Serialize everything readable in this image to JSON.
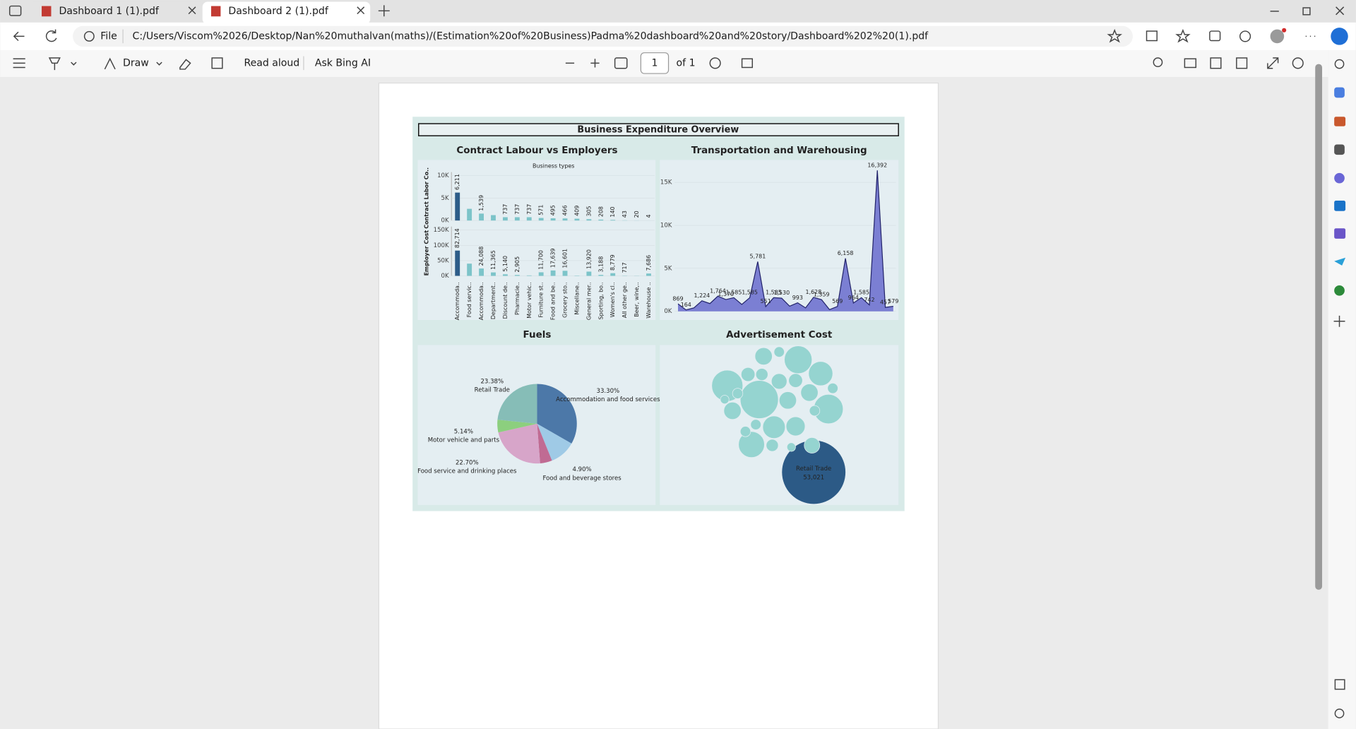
{
  "browser": {
    "tabs": [
      "Dashboard 1 (1).pdf",
      "Dashboard 2 (1).pdf"
    ],
    "address_scheme": "File",
    "url": "C:/Users/Viscom%2026/Desktop/Nan%20muthalvan(maths)/(Estimation%20of%20Business)Padma%20dashboard%20and%20story/Dashboard%202%20(1).pdf"
  },
  "pdf_toolbar": {
    "draw": "Draw",
    "read_aloud": "Read aloud",
    "ask": "Ask Bing AI",
    "page": "1",
    "page_count": "of 1"
  },
  "dashboard": {
    "title": "Business Expenditure Overview",
    "charts": [
      {
        "type": "bar",
        "title": "Contract Labour vs Employers",
        "subtitle": "Business types",
        "categories": [
          "Accommoda..",
          "Food servic..",
          "Accommoda..",
          "Department..",
          "Discount de..",
          "Pharmacie..",
          "Motor vehic..",
          "Furniture st..",
          "Food and be..",
          "Grocery sto..",
          "Miscellane..",
          "General mer..",
          "Sporting, bo..",
          "Women's cl..",
          "All other ge..",
          "Beer, wine,..",
          "Warehouse .."
        ],
        "color": "#7cc4c9",
        "highlight_color": "#2d5c88",
        "panels": [
          {
            "ylabel": "Contract Labor Co..",
            "ylim": [
              0,
              10000
            ],
            "yticks": [
              {
                "value": 0,
                "label": "0K"
              },
              {
                "value": 5000,
                "label": "5K"
              },
              {
                "value": 10000,
                "label": "10K"
              }
            ],
            "values": [
              6211,
              2600,
              1539,
              1200,
              737,
              737,
              737,
              571,
              495,
              466,
              409,
              305,
              208,
              140,
              43,
              20,
              4
            ],
            "value_labels": [
              "6,211",
              null,
              "1,539",
              null,
              "737",
              "737",
              "737",
              "571",
              "495",
              "466",
              "409",
              "305",
              "208",
              "140",
              "43",
              "20",
              "4"
            ]
          },
          {
            "ylabel": "Employer Cost",
            "ylim": [
              0,
              150000
            ],
            "yticks": [
              {
                "value": 0,
                "label": "0K"
              },
              {
                "value": 50000,
                "label": "50K"
              },
              {
                "value": 100000,
                "label": "100K"
              },
              {
                "value": 150000,
                "label": "150K"
              }
            ],
            "values": [
              82714,
              40000,
              24088,
              11365,
              5140,
              2905,
              1500,
              11700,
              17639,
              16601,
              1000,
              13920,
              3188,
              8779,
              717,
              500,
              7686
            ],
            "value_labels": [
              "82,714",
              null,
              "24,088",
              "11,365",
              "5,140",
              "2,905",
              null,
              "11,700",
              "17,639",
              "16,601",
              null,
              "13,920",
              "3,188",
              "8,779",
              "717",
              null,
              "7,686"
            ]
          }
        ]
      },
      {
        "type": "area",
        "title": "Transportation and Warehousing",
        "color": "#7b7fd3",
        "line_color": "#23246b",
        "ylim": [
          0,
          17000
        ],
        "yticks": [
          {
            "value": 0,
            "label": "0K"
          },
          {
            "value": 5000,
            "label": "5K"
          },
          {
            "value": 10000,
            "label": "10K"
          },
          {
            "value": 15000,
            "label": "15K"
          }
        ],
        "values": [
          869,
          164,
          400,
          1224,
          900,
          1764,
          1370,
          1585,
          800,
          1585,
          5781,
          551,
          1585,
          1530,
          600,
          993,
          400,
          1628,
          1359,
          200,
          569,
          6158,
          964,
          1585,
          742,
          16392,
          457,
          579
        ],
        "value_labels": [
          "869",
          "164",
          null,
          "1,224",
          null,
          "1,764",
          "1,370",
          "1,585",
          null,
          "1,585",
          "5,781",
          "551",
          "1,585",
          "1,530",
          null,
          "993",
          null,
          "1,628",
          "1,359",
          null,
          "569",
          "6,158",
          "964",
          "1,585",
          "742",
          "16,392",
          "457",
          "579"
        ]
      },
      {
        "type": "pie",
        "title": "Fuels",
        "categories": [
          "Accommodation and food services",
          null,
          "Food and beverage stores",
          "Food service and drinking places",
          "Motor vehicle and parts",
          "Retail Trade"
        ],
        "values": [
          33.3,
          10.58,
          4.9,
          22.7,
          5.14,
          23.38
        ],
        "value_labels": [
          "33.30%",
          null,
          "4.90%",
          "22.70%",
          "5.14%",
          "23.38%"
        ],
        "colors": [
          "#4c78a8",
          "#9fcae6",
          "#c06b93",
          "#d7a5c9",
          "#8ccf7e",
          "#86bdb7"
        ]
      },
      {
        "type": "bubble",
        "title": "Advertisement Cost",
        "color": "#95d4d0",
        "highlight_color": "#2c5a86",
        "categories": [
          "Retail Trade",
          null,
          null,
          null,
          null,
          null,
          null,
          null,
          null,
          null,
          null,
          null,
          null,
          null,
          null,
          null,
          null,
          null,
          null,
          null,
          null,
          null,
          null,
          null,
          null,
          null,
          null
        ],
        "values": [
          53021,
          18745,
          12548,
          9914,
          11192,
          8714,
          6544,
          7589,
          3873,
          4686,
          3873,
          3873,
          3137,
          2478,
          3873,
          3137,
          1394,
          1898,
          2478,
          1898,
          1394,
          1394,
          1394,
          1394,
          1394,
          968,
          968
        ],
        "value_labels": [
          "53,021",
          null,
          null,
          null,
          null,
          null,
          null,
          null,
          null,
          null,
          null,
          null,
          null,
          null,
          null,
          null,
          null,
          null,
          null,
          null,
          null,
          null,
          null,
          null,
          null,
          null,
          null
        ]
      }
    ]
  }
}
